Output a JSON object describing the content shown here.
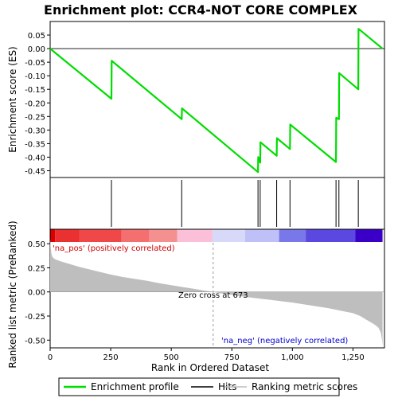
{
  "chart_data": {
    "type": "line",
    "title": "Enrichment plot: CCR4-NOT CORE COMPLEX",
    "xlabel": "Rank in Ordered Dataset",
    "top_ylabel": "Enrichment score (ES)",
    "bottom_ylabel": "Ranked list metric (PreRanked)",
    "xlim": [
      0,
      1380
    ],
    "top_ylim": [
      -0.475,
      0.1
    ],
    "bottom_ylim": [
      -0.58,
      0.65
    ],
    "x_ticks": [
      0,
      250,
      500,
      750,
      1000,
      1250
    ],
    "x_tick_labels": [
      "0",
      "250",
      "500",
      "750",
      "1,000",
      "1,250"
    ],
    "top_y_ticks": [
      0.05,
      0.0,
      -0.05,
      -0.1,
      -0.15,
      -0.2,
      -0.25,
      -0.3,
      -0.35,
      -0.4,
      -0.45
    ],
    "top_y_tick_labels": [
      "0.05",
      "0.00",
      "-0.05",
      "-0.10",
      "-0.15",
      "-0.20",
      "-0.25",
      "-0.30",
      "-0.35",
      "-0.40",
      "-0.45"
    ],
    "bottom_y_ticks": [
      0.5,
      0.25,
      0.0,
      -0.25,
      -0.5
    ],
    "bottom_y_tick_labels": [
      "0.50",
      "0.25",
      "0.00",
      "-0.25",
      "-0.50"
    ],
    "enrichment_profile": {
      "x": [
        0,
        253,
        254,
        543,
        544,
        858,
        859,
        867,
        868,
        935,
        936,
        990,
        991,
        1180,
        1181,
        1192,
        1193,
        1272,
        1273,
        1372
      ],
      "y": [
        0.0,
        -0.185,
        -0.045,
        -0.26,
        -0.22,
        -0.455,
        -0.4,
        -0.42,
        -0.345,
        -0.395,
        -0.33,
        -0.37,
        -0.28,
        -0.418,
        -0.255,
        -0.26,
        -0.09,
        -0.15,
        0.073,
        0.0
      ]
    },
    "hits": [
      253,
      543,
      858,
      867,
      935,
      990,
      1180,
      1192,
      1272
    ],
    "ranking_metric": {
      "x": [
        0,
        3,
        5,
        10,
        20,
        40,
        80,
        120,
        160,
        200,
        250,
        300,
        350,
        400,
        450,
        500,
        550,
        600,
        640,
        673,
        700,
        750,
        800,
        850,
        900,
        950,
        1000,
        1050,
        1100,
        1150,
        1200,
        1250,
        1280,
        1300,
        1320,
        1340,
        1355,
        1365,
        1370,
        1372
      ],
      "y": [
        0.55,
        0.45,
        0.4,
        0.36,
        0.34,
        0.32,
        0.29,
        0.26,
        0.235,
        0.21,
        0.18,
        0.155,
        0.135,
        0.115,
        0.09,
        0.07,
        0.05,
        0.03,
        0.012,
        0.0,
        -0.012,
        -0.03,
        -0.05,
        -0.065,
        -0.08,
        -0.095,
        -0.11,
        -0.13,
        -0.15,
        -0.17,
        -0.195,
        -0.22,
        -0.25,
        -0.28,
        -0.31,
        -0.34,
        -0.37,
        -0.42,
        -0.5,
        -0.56
      ]
    },
    "zero_cross": 673,
    "zero_cross_label": "Zero cross at 673",
    "pos_label": "'na_pos' (positively correlated)",
    "neg_label": "'na_neg' (negatively correlated)",
    "heatbar": {
      "edges": [
        0,
        20,
        120,
        295,
        410,
        525,
        670,
        805,
        945,
        1055,
        1260,
        1372
      ],
      "colors": [
        "#d90000",
        "#ea3030",
        "#f04848",
        "#f47070",
        "#f59090",
        "#fbc0d8",
        "#d8d8f8",
        "#c0c0f8",
        "#7878e8",
        "#5a48e0",
        "#3a00c8"
      ]
    },
    "colors": {
      "profile": "#00dd00",
      "hits": "#000000",
      "metric_fill": "#bebebe",
      "pos_text": "#cc0000",
      "neg_text": "#0000cc"
    },
    "legend": {
      "position": "bottom",
      "items": [
        {
          "label": "Enrichment profile",
          "color": "#00dd00"
        },
        {
          "label": "Hits",
          "color": "#000000"
        },
        {
          "label": "Ranking metric scores",
          "color": "#bebebe"
        }
      ]
    }
  }
}
